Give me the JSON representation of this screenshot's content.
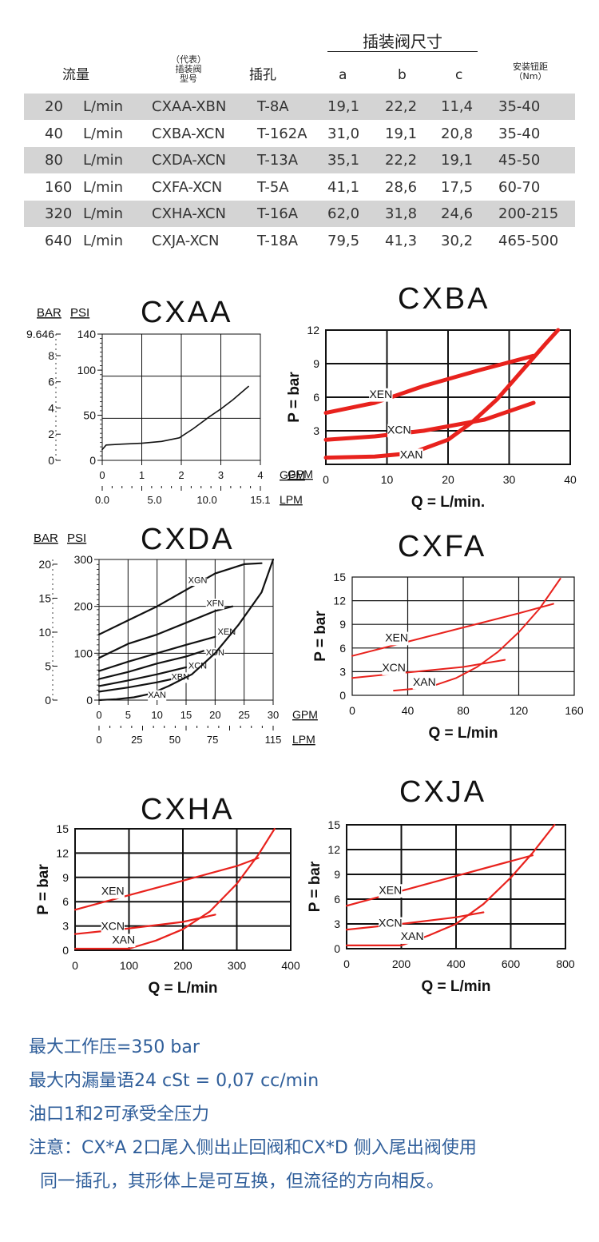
{
  "table": {
    "group_header": "插装阀尺寸",
    "headers": {
      "flow": "流量",
      "model_line1": "（代表）",
      "model_line2": "插装阀",
      "model_line3": "型号",
      "cavity": "插孔",
      "a": "a",
      "b": "b",
      "c": "c",
      "torque_line1": "安装钮距",
      "torque_line2": "（Nm）"
    },
    "rows": [
      {
        "flow": "20",
        "unit": "L/min",
        "model": "CXAA-XBN",
        "cavity": "T-8A",
        "a": "19,1",
        "b": "22,2",
        "c": "11,4",
        "torque": "35-40"
      },
      {
        "flow": "40",
        "unit": "L/min",
        "model": "CXBA-XCN",
        "cavity": "T-162A",
        "a": "31,0",
        "b": "19,1",
        "c": "20,8",
        "torque": "35-40"
      },
      {
        "flow": "80",
        "unit": "L/min",
        "model": "CXDA-XCN",
        "cavity": "T-13A",
        "a": "35,1",
        "b": "22,2",
        "c": "19,1",
        "torque": "45-50"
      },
      {
        "flow": "160",
        "unit": "L/min",
        "model": "CXFA-XCN",
        "cavity": "T-5A",
        "a": "41,1",
        "b": "28,6",
        "c": "17,5",
        "torque": "60-70"
      },
      {
        "flow": "320",
        "unit": "L/min",
        "model": "CXHA-XCN",
        "cavity": "T-16A",
        "a": "62,0",
        "b": "31,8",
        "c": "24,6",
        "torque": "200-215"
      },
      {
        "flow": "640",
        "unit": "L/min",
        "model": "CXJA-XCN",
        "cavity": "T-18A",
        "a": "79,5",
        "b": "41,3",
        "c": "30,2",
        "torque": "465-500"
      }
    ]
  },
  "chart_data": [
    {
      "id": "cxaa",
      "type": "line",
      "title": "CXAA",
      "y_label_bar": "BAR",
      "y_label_psi": "PSI",
      "bar_ticks": [
        "9.646",
        "8",
        "6",
        "4",
        "2",
        "0"
      ],
      "psi_ticks": [
        "140",
        "100",
        "50",
        "0"
      ],
      "x_ticks": [
        "0",
        "1",
        "2",
        "3",
        "4"
      ],
      "lpm_ticks": [
        "0.0",
        "5.0",
        "10.0",
        "15.1"
      ],
      "x_unit_gpm": "GPM",
      "x_unit_lpm": "LPM",
      "xlim": [
        0,
        4
      ],
      "ylim": [
        0,
        140
      ],
      "series": [
        {
          "x": [
            0,
            0.1,
            0.5,
            1.0,
            1.5,
            1.95,
            2.3,
            2.7,
            3.0,
            3.3,
            3.7
          ],
          "y": [
            12,
            17,
            18,
            19,
            21,
            25,
            35,
            48,
            57,
            67,
            82
          ]
        }
      ]
    },
    {
      "id": "cxba",
      "type": "line",
      "title": "CXBA",
      "ylabel": "P = bar",
      "xlabel": "Q = L/min.",
      "x_unit_gpm": "GPM",
      "x_ticks": [
        "0",
        "10",
        "20",
        "30",
        "40"
      ],
      "y_ticks": [
        "12",
        "9",
        "6",
        "3"
      ],
      "xlim": [
        0,
        40
      ],
      "ylim": [
        0,
        12
      ],
      "series": [
        {
          "name": "XEN",
          "x": [
            0,
            8,
            16,
            25,
            34
          ],
          "y": [
            4.6,
            5.5,
            7.0,
            8.4,
            9.7
          ]
        },
        {
          "name": "XCN",
          "x": [
            0,
            8,
            16,
            26,
            34
          ],
          "y": [
            2.2,
            2.5,
            3.0,
            4.0,
            5.5
          ]
        },
        {
          "name": "XAN",
          "x": [
            0,
            8,
            14,
            20,
            24,
            28,
            32,
            36,
            38
          ],
          "y": [
            0.6,
            0.7,
            1.0,
            2.2,
            3.8,
            5.8,
            8.3,
            10.8,
            12
          ]
        }
      ]
    },
    {
      "id": "cxda",
      "type": "line",
      "title": "CXDA",
      "y_label_bar": "BAR",
      "y_label_psi": "PSI",
      "bar_ticks": [
        "20",
        "15",
        "10",
        "5",
        "0"
      ],
      "psi_ticks": [
        "300",
        "200",
        "100",
        "0"
      ],
      "x_ticks": [
        "0",
        "5",
        "10",
        "15",
        "20",
        "25",
        "30"
      ],
      "lpm_ticks": [
        "0",
        "25",
        "50",
        "75",
        "115"
      ],
      "x_unit_gpm": "GPM",
      "x_unit_lpm": "LPM",
      "xlim": [
        0,
        30
      ],
      "ylim": [
        0,
        300
      ],
      "series": [
        {
          "name": "XGN",
          "x": [
            0,
            5,
            10,
            15,
            20,
            25,
            28
          ],
          "y": [
            140,
            170,
            200,
            235,
            270,
            290,
            292
          ]
        },
        {
          "name": "XFN",
          "x": [
            0,
            5,
            10,
            15,
            20,
            23
          ],
          "y": [
            90,
            120,
            140,
            165,
            190,
            200
          ]
        },
        {
          "name": "XEN",
          "x": [
            0,
            5,
            10,
            15,
            20
          ],
          "y": [
            62,
            82,
            100,
            118,
            135
          ]
        },
        {
          "name": "XDN",
          "x": [
            0,
            5,
            10,
            15,
            18
          ],
          "y": [
            45,
            60,
            78,
            93,
            105
          ]
        },
        {
          "name": "XCN",
          "x": [
            0,
            5,
            10,
            15
          ],
          "y": [
            30,
            42,
            55,
            70
          ]
        },
        {
          "name": "XBN",
          "x": [
            0,
            5,
            10,
            13
          ],
          "y": [
            18,
            27,
            38,
            46
          ]
        },
        {
          "name": "XAN",
          "x": [
            0,
            3,
            6,
            9,
            12,
            16,
            20,
            24,
            28,
            30
          ],
          "y": [
            0,
            2,
            6,
            14,
            30,
            55,
            100,
            160,
            230,
            300
          ]
        }
      ]
    },
    {
      "id": "cxfa",
      "type": "line",
      "title": "CXFA",
      "ylabel": "P = bar",
      "xlabel": "Q = L/min",
      "x_ticks": [
        "0",
        "40",
        "80",
        "120",
        "160"
      ],
      "y_ticks": [
        "15",
        "12",
        "9",
        "6",
        "3",
        "0"
      ],
      "xlim": [
        0,
        160
      ],
      "ylim": [
        0,
        15
      ],
      "series": [
        {
          "name": "XEN",
          "x": [
            0,
            40,
            80,
            120,
            145
          ],
          "y": [
            5.0,
            6.8,
            8.6,
            10.4,
            11.6
          ]
        },
        {
          "name": "XCN",
          "x": [
            0,
            40,
            80,
            110
          ],
          "y": [
            2.2,
            2.9,
            3.6,
            4.5
          ]
        },
        {
          "name": "XAN",
          "x": [
            30,
            55,
            75,
            90,
            105,
            120,
            135,
            150
          ],
          "y": [
            0.6,
            1.0,
            2.2,
            3.6,
            5.5,
            8.0,
            11.0,
            14.8
          ]
        }
      ]
    },
    {
      "id": "cxha",
      "type": "line",
      "title": "CXHA",
      "ylabel": "P = bar",
      "xlabel": "Q = L/min",
      "x_ticks": [
        "0",
        "100",
        "200",
        "300",
        "400"
      ],
      "y_ticks": [
        "15",
        "12",
        "9",
        "6",
        "3",
        "0"
      ],
      "xlim": [
        0,
        400
      ],
      "ylim": [
        0,
        15
      ],
      "series": [
        {
          "name": "XEN",
          "x": [
            0,
            100,
            200,
            300,
            340
          ],
          "y": [
            5.0,
            6.8,
            8.6,
            10.4,
            11.4
          ]
        },
        {
          "name": "XCN",
          "x": [
            0,
            100,
            200,
            260
          ],
          "y": [
            2.0,
            2.7,
            3.5,
            4.4
          ]
        },
        {
          "name": "XAN",
          "x": [
            0,
            100,
            150,
            200,
            250,
            300,
            340,
            370
          ],
          "y": [
            0.2,
            0.2,
            1.2,
            2.6,
            4.8,
            8.2,
            11.8,
            15
          ]
        }
      ]
    },
    {
      "id": "cxja",
      "type": "line",
      "title": "CXJA",
      "ylabel": "P = bar",
      "xlabel": "Q = L/min",
      "x_ticks": [
        "0",
        "200",
        "400",
        "600",
        "800"
      ],
      "y_ticks": [
        "15",
        "12",
        "9",
        "6",
        "3",
        "0"
      ],
      "xlim": [
        0,
        800
      ],
      "ylim": [
        0,
        15
      ],
      "series": [
        {
          "name": "XEN",
          "x": [
            0,
            200,
            400,
            600,
            680
          ],
          "y": [
            5.2,
            7.0,
            8.8,
            10.6,
            11.3
          ]
        },
        {
          "name": "XCN",
          "x": [
            0,
            200,
            400,
            500
          ],
          "y": [
            2.3,
            3.0,
            3.8,
            4.4
          ]
        },
        {
          "name": "XAN",
          "x": [
            0,
            200,
            300,
            400,
            500,
            600,
            680,
            760
          ],
          "y": [
            0.4,
            0.4,
            1.6,
            3.0,
            5.4,
            8.6,
            11.6,
            15
          ]
        }
      ]
    }
  ],
  "notes": [
    "最大工作压=350  bar",
    "最大内漏量语24   cSt = 0,07  cc/min",
    "油口1和2可承受全压力",
    "注意：CX*A  2口尾入侧出止回阀和CX*D 侧入尾出阀使用",
    "  同一插孔，其形体上是可互换，但流径的方向相反。"
  ],
  "colors": {
    "red_curve": "#e8221d",
    "black_curve": "#111111",
    "note_blue": "#2f5e9a",
    "row_shade": "#d4d4d4"
  }
}
